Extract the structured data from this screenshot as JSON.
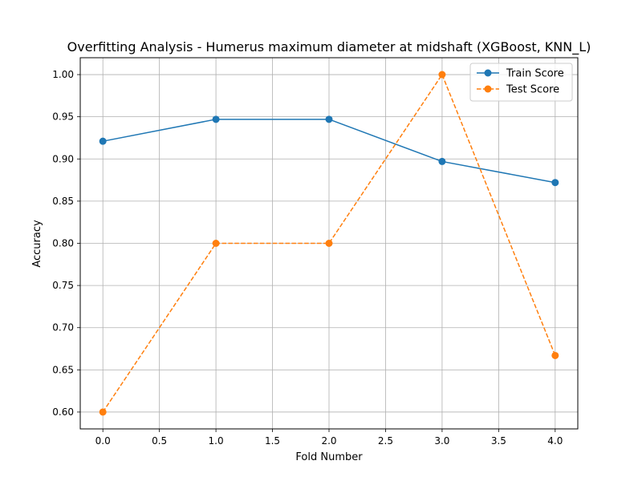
{
  "chart_data": {
    "type": "line",
    "title": "Overfitting Analysis - Humerus maximum diameter at midshaft (XGBoost, KNN_L)",
    "xlabel": "Fold Number",
    "ylabel": "Accuracy",
    "xlim": [
      -0.2,
      4.2
    ],
    "ylim": [
      0.58,
      1.02
    ],
    "x_ticks": [
      "0.0",
      "0.5",
      "1.0",
      "1.5",
      "2.0",
      "2.5",
      "3.0",
      "3.5",
      "4.0"
    ],
    "y_ticks": [
      "0.60",
      "0.65",
      "0.70",
      "0.75",
      "0.80",
      "0.85",
      "0.90",
      "0.95",
      "1.00"
    ],
    "x_tick_values": [
      0,
      0.5,
      1,
      1.5,
      2,
      2.5,
      3,
      3.5,
      4
    ],
    "y_tick_values": [
      0.6,
      0.65,
      0.7,
      0.75,
      0.8,
      0.85,
      0.9,
      0.95,
      1.0
    ],
    "grid": true,
    "legend_position": "top-right",
    "x": [
      0,
      1,
      2,
      3,
      4
    ],
    "series": [
      {
        "name": "Train Score",
        "values": [
          0.921,
          0.947,
          0.947,
          0.897,
          0.872
        ],
        "color": "#1f77b4",
        "line_style": "solid",
        "marker": "circle"
      },
      {
        "name": "Test Score",
        "values": [
          0.6,
          0.8,
          0.8,
          1.0,
          0.667
        ],
        "color": "#ff7f0e",
        "line_style": "dashed",
        "marker": "circle"
      }
    ]
  }
}
